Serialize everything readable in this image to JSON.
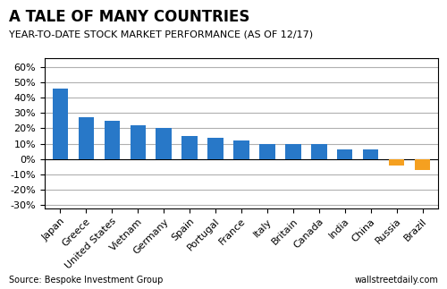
{
  "chart_data": {
    "type": "bar",
    "title": "A TALE OF MANY COUNTRIES",
    "subtitle": "YEAR-TO-DATE STOCK MARKET PERFORMANCE (AS OF 12/17)",
    "categories": [
      "Japan",
      "Greece",
      "United States",
      "Vietnam",
      "Germany",
      "Spain",
      "Portugal",
      "France",
      "Italy",
      "Britain",
      "Canada",
      "India",
      "China",
      "Russia",
      "Brazil"
    ],
    "values": [
      46,
      27,
      25,
      22,
      20,
      15,
      14,
      12,
      10,
      10,
      10,
      6,
      6,
      -4,
      -7
    ],
    "colors": [
      "#2878c8",
      "#2878c8",
      "#2878c8",
      "#2878c8",
      "#2878c8",
      "#2878c8",
      "#2878c8",
      "#2878c8",
      "#2878c8",
      "#2878c8",
      "#2878c8",
      "#2878c8",
      "#2878c8",
      "#f5a020",
      "#f5a020"
    ],
    "ylim": [
      -32,
      66
    ],
    "yticks": [
      {
        "value": -30,
        "label": "-30%"
      },
      {
        "value": -20,
        "label": "-20%"
      },
      {
        "value": -10,
        "label": "-10%"
      },
      {
        "value": 0,
        "label": "0%"
      },
      {
        "value": 10,
        "label": "10%"
      },
      {
        "value": 20,
        "label": "20%"
      },
      {
        "value": 30,
        "label": "30%"
      },
      {
        "value": 40,
        "label": "40%"
      },
      {
        "value": 50,
        "label": "50%"
      },
      {
        "value": 60,
        "label": "60%"
      }
    ],
    "grid": true,
    "annotations": [
      "Source: Bespoke Investment Group",
      "wallstreetdaily.com"
    ]
  }
}
